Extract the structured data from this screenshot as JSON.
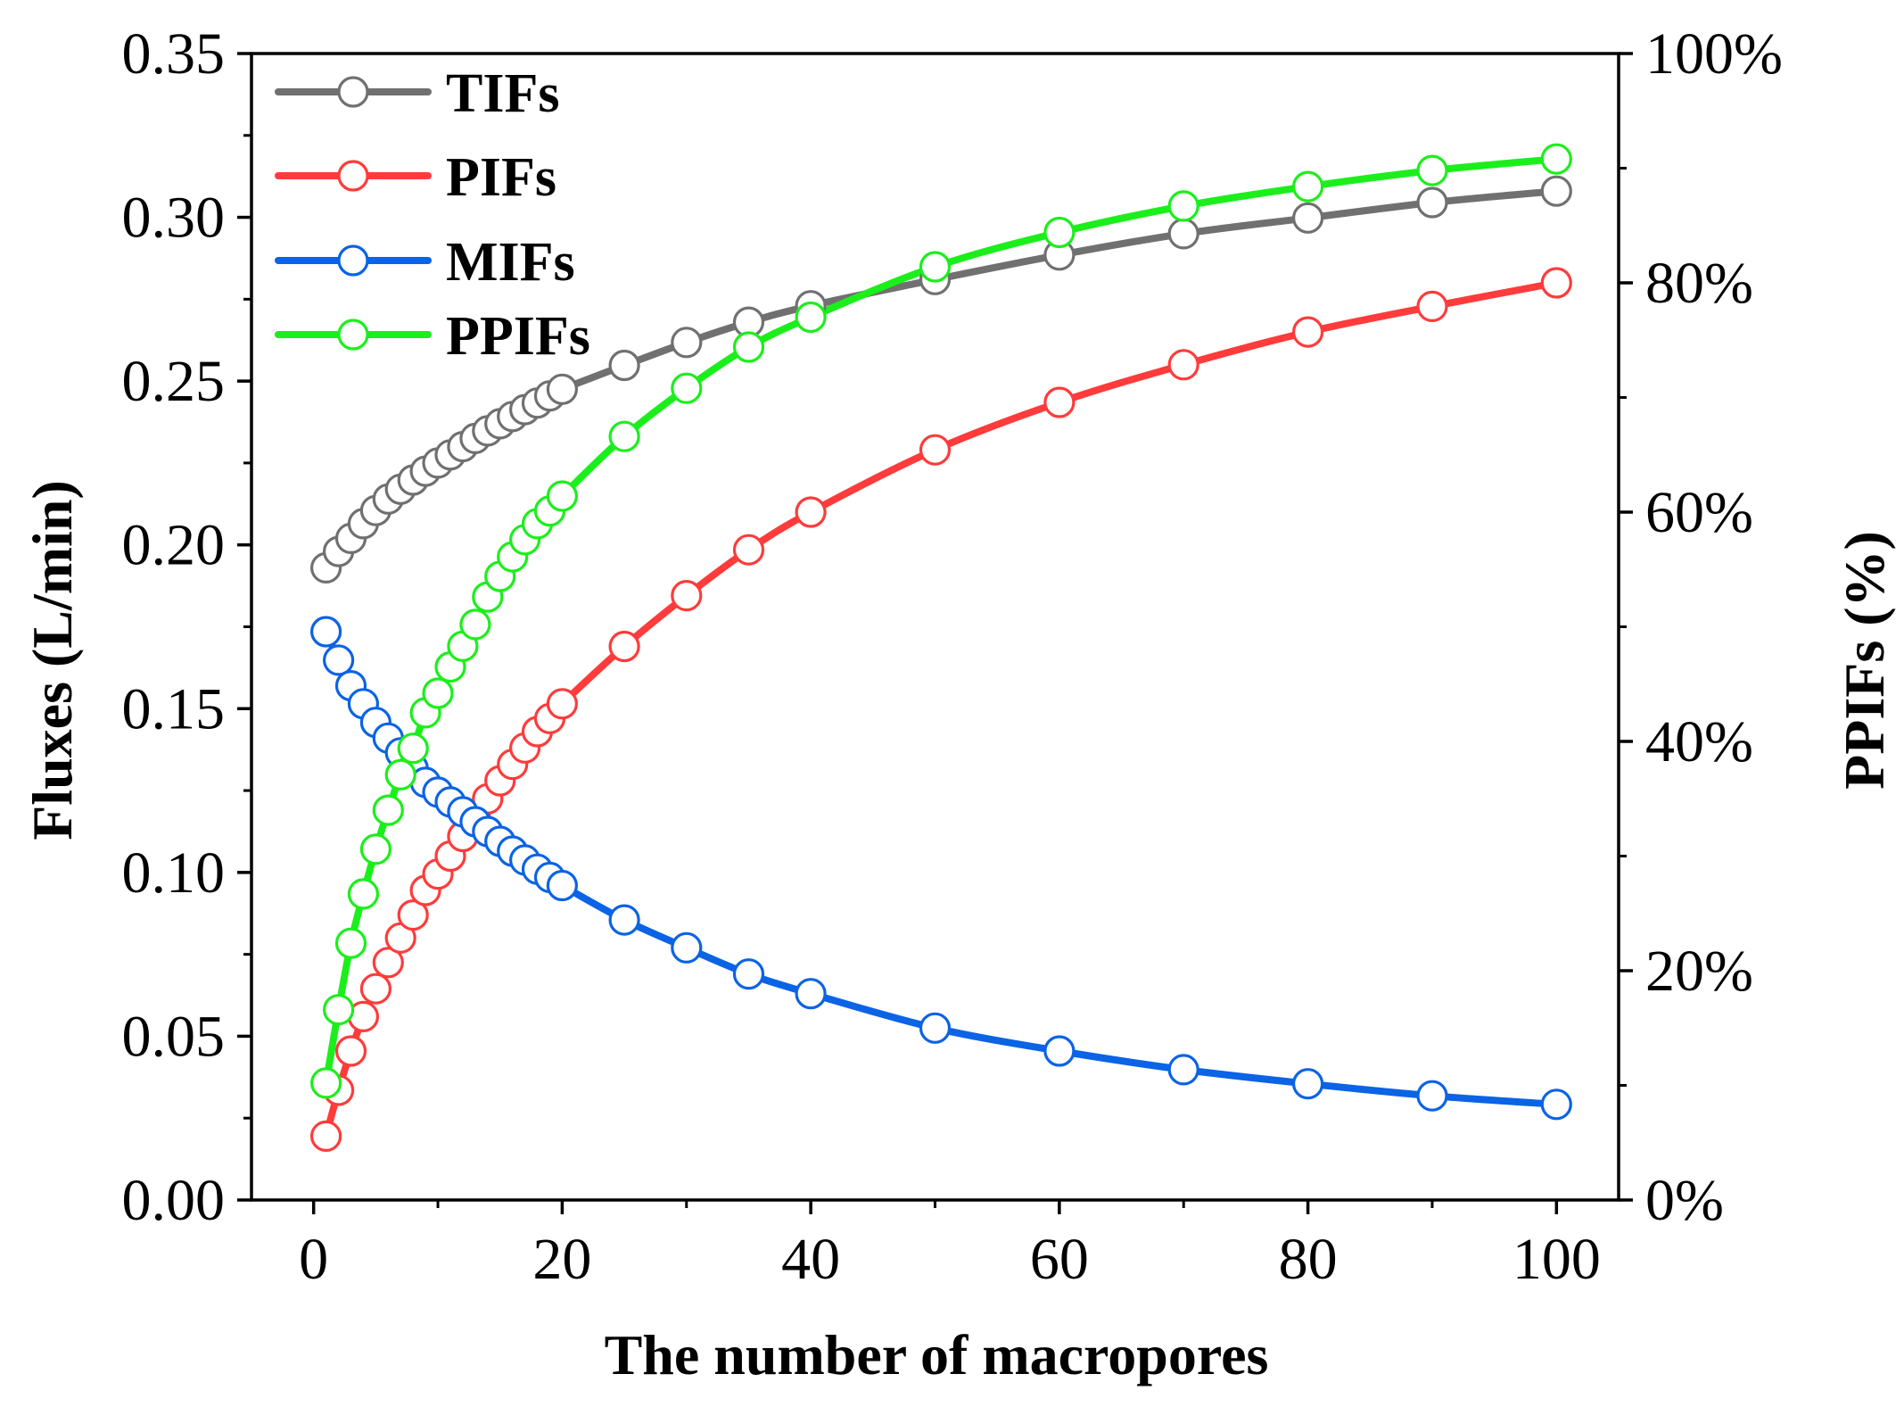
{
  "chart_data": {
    "type": "line",
    "xlabel": "The number of macropores",
    "ylabel": "Fluxes (L/min)",
    "y2label": "PPIFs (%)",
    "xlim": [
      -5,
      105
    ],
    "ylim": [
      0,
      0.35
    ],
    "y2lim": [
      0,
      100
    ],
    "x_ticks": [
      "0",
      "20",
      "40",
      "60",
      "80",
      "100"
    ],
    "x_tick_values": [
      0,
      20,
      40,
      60,
      80,
      100
    ],
    "y_ticks": [
      "0.00",
      "0.05",
      "0.10",
      "0.15",
      "0.20",
      "0.25",
      "0.30",
      "0.35"
    ],
    "y_tick_values": [
      0,
      0.05,
      0.1,
      0.15,
      0.2,
      0.25,
      0.3,
      0.35
    ],
    "y2_ticks": [
      "0%",
      "20%",
      "40%",
      "60%",
      "80%",
      "100%"
    ],
    "y2_tick_values": [
      0,
      20,
      40,
      60,
      80,
      100
    ],
    "legend_position": "top-left",
    "x": [
      1,
      2,
      3,
      4,
      5,
      6,
      7,
      8,
      9,
      10,
      11,
      12,
      13,
      14,
      15,
      16,
      17,
      18,
      19,
      20,
      25,
      30,
      35,
      40,
      50,
      60,
      70,
      80,
      90,
      100
    ],
    "series": [
      {
        "name": "TIFs",
        "axis": "left",
        "color": "#707070",
        "values": [
          0.193,
          0.198,
          0.202,
          0.2065,
          0.2105,
          0.214,
          0.217,
          0.2198,
          0.2225,
          0.225,
          0.2275,
          0.23,
          0.2325,
          0.2348,
          0.237,
          0.2392,
          0.2413,
          0.2433,
          0.2455,
          0.2475,
          0.2548,
          0.2618,
          0.268,
          0.273,
          0.281,
          0.2885,
          0.295,
          0.2998,
          0.3045,
          0.308
        ]
      },
      {
        "name": "PIFs",
        "axis": "left",
        "color": "#ff3b3b",
        "values": [
          0.0195,
          0.0335,
          0.0455,
          0.056,
          0.0645,
          0.0725,
          0.08,
          0.087,
          0.0945,
          0.0995,
          0.105,
          0.111,
          0.117,
          0.1225,
          0.128,
          0.133,
          0.138,
          0.143,
          0.147,
          0.1515,
          0.169,
          0.1845,
          0.1985,
          0.21,
          0.229,
          0.2435,
          0.255,
          0.265,
          0.2728,
          0.28
        ]
      },
      {
        "name": "MIFs",
        "axis": "left",
        "color": "#0b63e5",
        "values": [
          0.1735,
          0.1648,
          0.157,
          0.1515,
          0.1458,
          0.141,
          0.1365,
          0.1318,
          0.1275,
          0.1245,
          0.1215,
          0.1185,
          0.1155,
          0.1125,
          0.1095,
          0.1065,
          0.1038,
          0.101,
          0.0985,
          0.096,
          0.0855,
          0.077,
          0.069,
          0.063,
          0.0525,
          0.0455,
          0.0398,
          0.0355,
          0.0318,
          0.0292
        ]
      },
      {
        "name": "PPIFs",
        "axis": "right",
        "color": "#1bef1b",
        "values": [
          10.2,
          16.6,
          22.4,
          26.7,
          30.6,
          34.0,
          37.1,
          39.4,
          42.5,
          44.2,
          46.5,
          48.3,
          50.2,
          52.6,
          54.4,
          56.1,
          57.6,
          59.0,
          60.1,
          61.4,
          66.6,
          70.8,
          74.4,
          77.0,
          81.4,
          84.4,
          86.7,
          88.4,
          89.8,
          90.8
        ]
      }
    ]
  }
}
